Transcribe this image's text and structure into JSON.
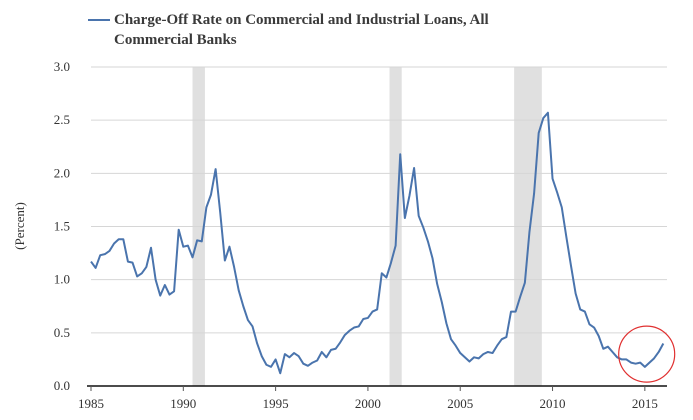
{
  "chart_data": {
    "type": "line",
    "title": "",
    "ylabel": "(Percent)",
    "xlabel": "",
    "xlim": [
      1985,
      2016.2
    ],
    "ylim": [
      0,
      3.0
    ],
    "grid": "horizontal",
    "legend_position": "top-left",
    "x_ticks": [
      1985,
      1990,
      1995,
      2000,
      2005,
      2010,
      2015
    ],
    "y_ticks": [
      0.0,
      0.5,
      1.0,
      1.5,
      2.0,
      2.5,
      3.0
    ],
    "y_tick_labels": [
      "0.0",
      "0.5",
      "1.0",
      "1.5",
      "2.0",
      "2.5",
      "3.0"
    ],
    "recessions": [
      [
        1990.5,
        1991.17
      ],
      [
        2001.17,
        2001.83
      ],
      [
        2007.92,
        2009.42
      ]
    ],
    "highlight_circle": {
      "x": 2015.1,
      "y": 0.3
    },
    "colors": {
      "line": "#4a74ad",
      "recession": "#e0e0e0",
      "grid": "#d6d6d6",
      "circle": "#e03030"
    },
    "series": [
      {
        "name": "Charge-Off Rate on Commercial and Industrial Loans, All Commercial Banks",
        "x": [
          1985.0,
          1985.25,
          1985.5,
          1985.75,
          1986.0,
          1986.25,
          1986.5,
          1986.75,
          1987.0,
          1987.25,
          1987.5,
          1987.75,
          1988.0,
          1988.25,
          1988.5,
          1988.75,
          1989.0,
          1989.25,
          1989.5,
          1989.75,
          1990.0,
          1990.25,
          1990.5,
          1990.75,
          1991.0,
          1991.25,
          1991.5,
          1991.75,
          1992.0,
          1992.25,
          1992.5,
          1992.75,
          1993.0,
          1993.25,
          1993.5,
          1993.75,
          1994.0,
          1994.25,
          1994.5,
          1994.75,
          1995.0,
          1995.25,
          1995.5,
          1995.75,
          1996.0,
          1996.25,
          1996.5,
          1996.75,
          1997.0,
          1997.25,
          1997.5,
          1997.75,
          1998.0,
          1998.25,
          1998.5,
          1998.75,
          1999.0,
          1999.25,
          1999.5,
          1999.75,
          2000.0,
          2000.25,
          2000.5,
          2000.75,
          2001.0,
          2001.25,
          2001.5,
          2001.75,
          2002.0,
          2002.25,
          2002.5,
          2002.75,
          2003.0,
          2003.25,
          2003.5,
          2003.75,
          2004.0,
          2004.25,
          2004.5,
          2004.75,
          2005.0,
          2005.25,
          2005.5,
          2005.75,
          2006.0,
          2006.25,
          2006.5,
          2006.75,
          2007.0,
          2007.25,
          2007.5,
          2007.75,
          2008.0,
          2008.25,
          2008.5,
          2008.75,
          2009.0,
          2009.25,
          2009.5,
          2009.75,
          2010.0,
          2010.25,
          2010.5,
          2010.75,
          2011.0,
          2011.25,
          2011.5,
          2011.75,
          2012.0,
          2012.25,
          2012.5,
          2012.75,
          2013.0,
          2013.25,
          2013.5,
          2013.75,
          2014.0,
          2014.25,
          2014.5,
          2014.75,
          2015.0,
          2015.25,
          2015.5,
          2015.75,
          2016.0
        ],
        "values": [
          1.17,
          1.11,
          1.23,
          1.24,
          1.27,
          1.34,
          1.38,
          1.38,
          1.17,
          1.16,
          1.03,
          1.06,
          1.12,
          1.3,
          1.0,
          0.85,
          0.95,
          0.86,
          0.89,
          1.47,
          1.31,
          1.32,
          1.21,
          1.37,
          1.36,
          1.68,
          1.8,
          2.04,
          1.63,
          1.18,
          1.31,
          1.12,
          0.9,
          0.75,
          0.62,
          0.56,
          0.4,
          0.28,
          0.2,
          0.18,
          0.25,
          0.12,
          0.3,
          0.27,
          0.31,
          0.28,
          0.21,
          0.19,
          0.22,
          0.24,
          0.32,
          0.27,
          0.34,
          0.35,
          0.41,
          0.48,
          0.52,
          0.55,
          0.56,
          0.63,
          0.64,
          0.7,
          0.72,
          1.06,
          1.02,
          1.16,
          1.32,
          2.18,
          1.58,
          1.79,
          2.05,
          1.6,
          1.49,
          1.36,
          1.2,
          0.96,
          0.79,
          0.59,
          0.44,
          0.38,
          0.31,
          0.27,
          0.23,
          0.27,
          0.26,
          0.3,
          0.32,
          0.31,
          0.38,
          0.44,
          0.46,
          0.7,
          0.7,
          0.84,
          0.97,
          1.45,
          1.81,
          2.38,
          2.52,
          2.57,
          1.95,
          1.82,
          1.68,
          1.4,
          1.13,
          0.87,
          0.72,
          0.7,
          0.58,
          0.55,
          0.47,
          0.35,
          0.37,
          0.32,
          0.27,
          0.25,
          0.25,
          0.22,
          0.21,
          0.22,
          0.18,
          0.22,
          0.26,
          0.32,
          0.4
        ]
      }
    ]
  }
}
